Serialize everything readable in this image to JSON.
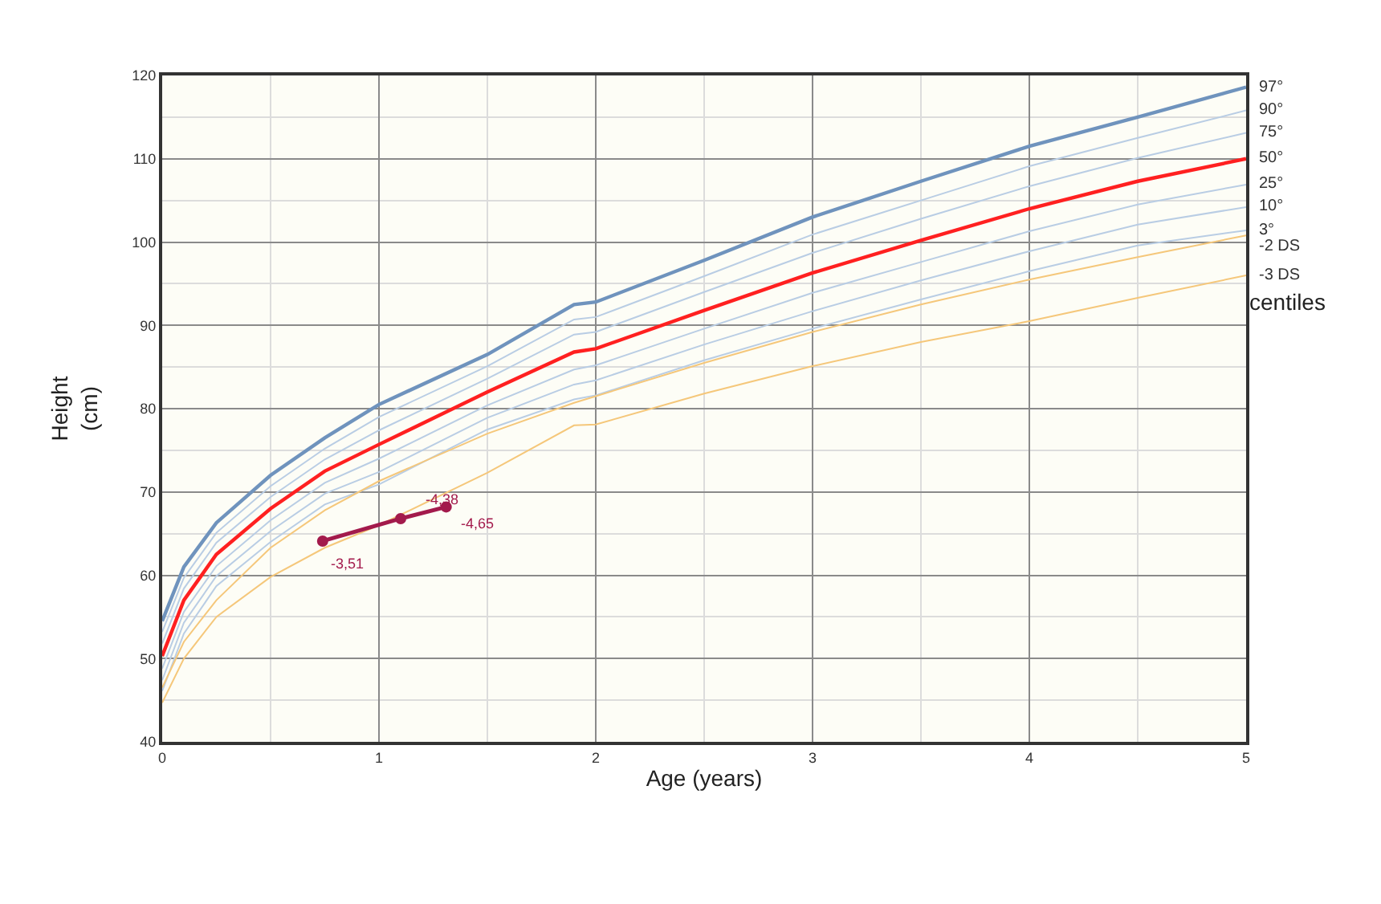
{
  "chart_data": {
    "type": "line",
    "xlabel": "Age (years)",
    "ylabel": "Height\n(cm)",
    "x": [
      0,
      0.1,
      0.25,
      0.5,
      0.75,
      1,
      1.5,
      1.9,
      2,
      2.5,
      3,
      3.5,
      4,
      4.5,
      5
    ],
    "series": [
      {
        "name": "97°",
        "color": "#6f93bd",
        "values": [
          54.5,
          61,
          66.3,
          72,
          76.5,
          80.5,
          86.5,
          92.5,
          92.8,
          97.8,
          103,
          107.3,
          111.5,
          115,
          118.6
        ]
      },
      {
        "name": "90°",
        "color": "#b9cde4",
        "values": [
          53.2,
          59.7,
          65.1,
          70.7,
          75.2,
          79.0,
          85.1,
          90.7,
          91.0,
          95.9,
          100.9,
          105.0,
          109.1,
          112.5,
          115.8
        ]
      },
      {
        "name": "75°",
        "color": "#b9cde4",
        "values": [
          51.8,
          58.4,
          63.9,
          69.4,
          73.9,
          77.4,
          83.6,
          88.9,
          89.2,
          94.0,
          98.7,
          102.8,
          106.7,
          110.1,
          113.1
        ]
      },
      {
        "name": "50°",
        "color": "#ff2020",
        "values": [
          50.3,
          57,
          62.5,
          68,
          72.5,
          75.7,
          82,
          86.8,
          87.2,
          91.8,
          96.3,
          100.2,
          104,
          107.3,
          110
        ]
      },
      {
        "name": "25°",
        "color": "#b9cde4",
        "values": [
          48.8,
          55.6,
          61.1,
          66.6,
          71.1,
          74.0,
          80.4,
          84.7,
          85.2,
          89.6,
          93.9,
          97.6,
          101.3,
          104.5,
          106.9
        ]
      },
      {
        "name": "10°",
        "color": "#b9cde4",
        "values": [
          47.4,
          54.3,
          59.9,
          65.3,
          69.8,
          72.4,
          78.9,
          82.9,
          83.4,
          87.7,
          91.7,
          95.4,
          98.9,
          102.1,
          104.2
        ]
      },
      {
        "name": "3°",
        "color": "#b9cde4",
        "values": [
          46.1,
          53.0,
          58.7,
          64.0,
          68.5,
          70.9,
          77.5,
          81.1,
          81.6,
          85.8,
          89.6,
          93.1,
          96.5,
          99.6,
          101.4
        ]
      },
      {
        "name": "-2 DS",
        "color": "#f5c77a",
        "values": [
          46.5,
          52,
          57,
          63.3,
          67.8,
          71.3,
          77,
          80.7,
          81.5,
          85.5,
          89.2,
          92.5,
          95.5,
          98.2,
          100.8
        ]
      },
      {
        "name": "-3 DS",
        "color": "#f5c77a",
        "values": [
          44.7,
          50,
          55,
          59.8,
          63.3,
          66,
          72.3,
          78,
          78.1,
          81.8,
          85.1,
          88,
          90.5,
          93.3,
          96
        ]
      },
      {
        "color": "#a31a4c",
        "marker": "circle",
        "x": [
          0.74,
          1.1,
          1.31
        ],
        "values": [
          64.1,
          66.8,
          68.2
        ]
      }
    ],
    "annotations": [
      "centiles",
      {
        "text": "-3,51",
        "x": 0.74,
        "y": 64.1
      },
      {
        "text": "-4,38",
        "x": 1.1,
        "y": 66.8
      },
      {
        "text": "-4,65",
        "x": 1.31,
        "y": 68.2
      }
    ],
    "xlim": [
      0,
      5
    ],
    "xticks": [
      0,
      1,
      2,
      3,
      4,
      5
    ],
    "ylim": [
      40,
      120
    ],
    "yticks": [
      40,
      50,
      60,
      70,
      80,
      90,
      100,
      110,
      120
    ],
    "grid": true,
    "legend": false
  }
}
